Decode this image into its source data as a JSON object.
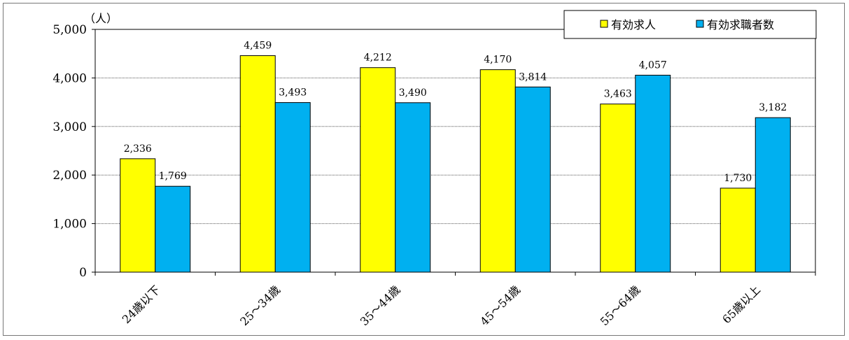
{
  "chart_data": {
    "type": "bar",
    "unit_label": "（人）",
    "categories": [
      "24歳以下",
      "25～34歳",
      "35～44歳",
      "45～54歳",
      "55～64歳",
      "65歳以上"
    ],
    "series": [
      {
        "name": "有効求人",
        "color": "#ffff00",
        "values": [
          2336,
          4459,
          4212,
          4170,
          3463,
          1730
        ]
      },
      {
        "name": "有効求職者数",
        "color": "#00b0f0",
        "values": [
          1769,
          3493,
          3490,
          3814,
          4057,
          3182
        ]
      }
    ],
    "value_labels": [
      [
        "2,336",
        "4,459",
        "4,212",
        "4,170",
        "3,463",
        "1,730"
      ],
      [
        "1,769",
        "3,493",
        "3,490",
        "3,814",
        "4,057",
        "3,182"
      ]
    ],
    "ylim": [
      0,
      5000
    ],
    "yticks": [
      0,
      1000,
      2000,
      3000,
      4000,
      5000
    ],
    "ytick_labels": [
      "0",
      "1,000",
      "2,000",
      "3,000",
      "4,000",
      "5,000"
    ],
    "grid": true,
    "legend_position": "top-right"
  }
}
